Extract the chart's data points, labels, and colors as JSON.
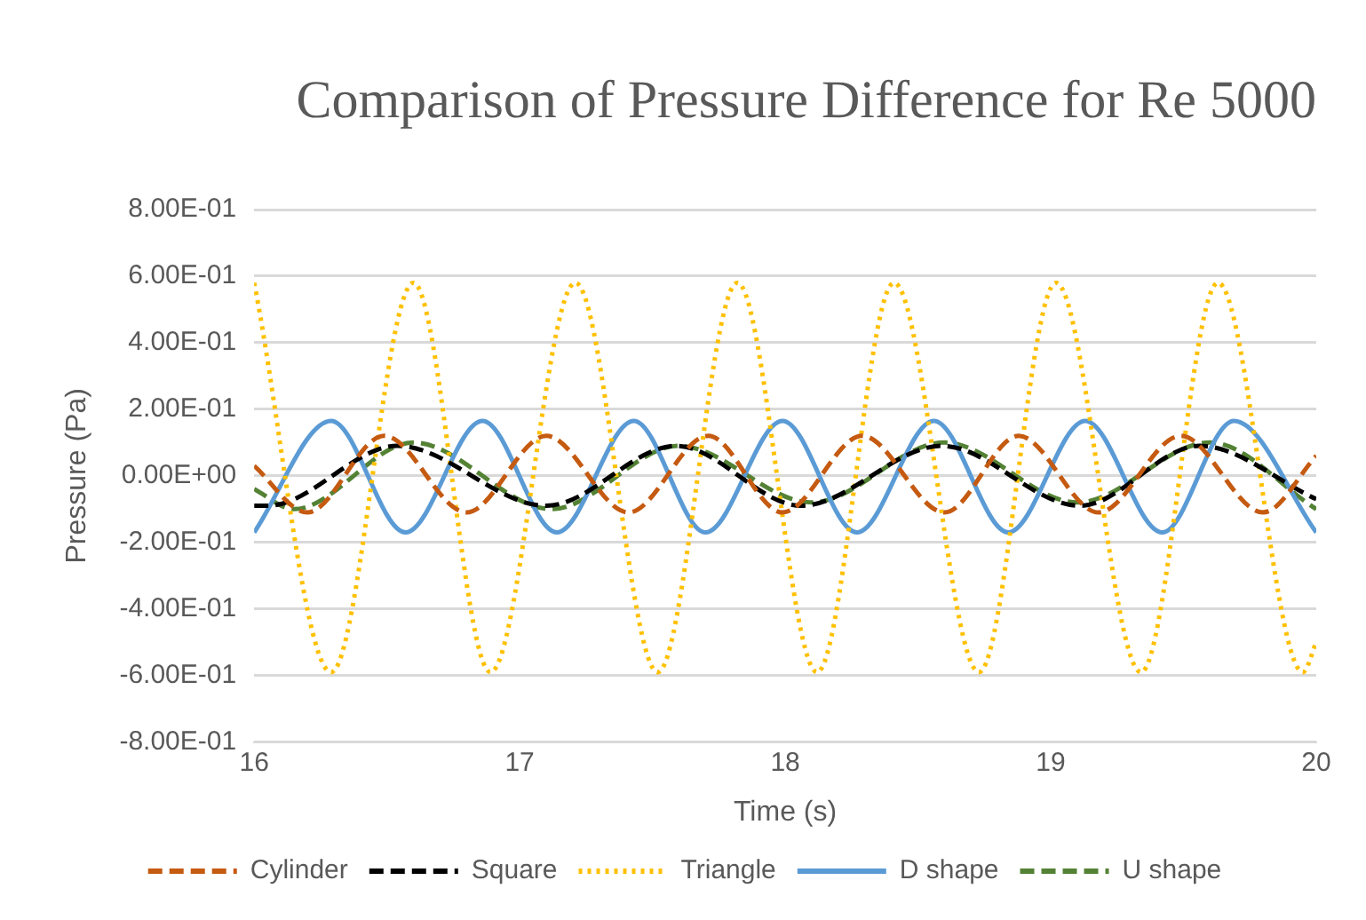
{
  "chart_data": {
    "type": "line",
    "title": "Comparison of Pressure Difference for Re 5000",
    "xlabel": "Time (s)",
    "ylabel": "Pressure (Pa)",
    "xlim": [
      16,
      20
    ],
    "xticks": [
      16,
      17,
      18,
      19,
      20
    ],
    "ylim": [
      -0.8,
      0.8
    ],
    "yticks": [
      {
        "value": -0.8,
        "label": "-8.00E-01"
      },
      {
        "value": -0.6,
        "label": "-6.00E-01"
      },
      {
        "value": -0.4,
        "label": "-4.00E-01"
      },
      {
        "value": -0.2,
        "label": "-2.00E-01"
      },
      {
        "value": 0,
        "label": "0.00E+00"
      },
      {
        "value": 0.2,
        "label": "2.00E-01"
      },
      {
        "value": 0.4,
        "label": "4.00E-01"
      },
      {
        "value": 0.6,
        "label": "6.00E-01"
      },
      {
        "value": 0.8,
        "label": "8.00E-01"
      }
    ],
    "grid": "y",
    "legend": "bottom",
    "marker": "none",
    "series": [
      {
        "name": "Cylinder",
        "color": "#c55a11",
        "line_style": "dashed",
        "x": [
          16.0,
          16.2,
          16.49,
          16.8,
          17.1,
          17.41,
          17.71,
          17.99,
          18.29,
          18.6,
          18.88,
          19.18,
          19.49,
          19.8,
          20.0
        ],
        "values": [
          0.03,
          -0.11,
          0.12,
          -0.11,
          0.12,
          -0.11,
          0.12,
          -0.11,
          0.12,
          -0.11,
          0.12,
          -0.11,
          0.12,
          -0.11,
          0.06
        ]
      },
      {
        "name": "Square",
        "color": "#000000",
        "line_style": "dashed",
        "x": [
          16.0,
          16.05,
          16.54,
          17.1,
          17.59,
          18.06,
          18.59,
          19.11,
          19.56,
          20.0
        ],
        "values": [
          -0.09,
          -0.09,
          0.09,
          -0.09,
          0.09,
          -0.09,
          0.09,
          -0.09,
          0.09,
          -0.07
        ]
      },
      {
        "name": "Triangle",
        "color": "#ffc000",
        "line_style": "dotted",
        "x": [
          16.0,
          16.29,
          16.6,
          16.89,
          17.21,
          17.52,
          17.82,
          18.12,
          18.41,
          18.73,
          19.02,
          19.34,
          19.63,
          19.95,
          20.0
        ],
        "values": [
          0.58,
          -0.59,
          0.58,
          -0.59,
          0.58,
          -0.59,
          0.58,
          -0.59,
          0.58,
          -0.59,
          0.58,
          -0.59,
          0.58,
          -0.59,
          -0.5
        ]
      },
      {
        "name": "D shape",
        "color": "#5b9bd5",
        "line_style": "solid",
        "x": [
          16.0,
          16.29,
          16.57,
          16.86,
          17.14,
          17.43,
          17.7,
          17.99,
          18.27,
          18.56,
          18.84,
          19.13,
          19.42,
          19.69,
          20.0
        ],
        "values": [
          -0.17,
          0.165,
          -0.17,
          0.165,
          -0.17,
          0.165,
          -0.17,
          0.165,
          -0.17,
          0.165,
          -0.17,
          0.165,
          -0.17,
          0.165,
          -0.17
        ]
      },
      {
        "name": "U shape",
        "color": "#548235",
        "line_style": "dashed",
        "x": [
          16.0,
          16.15,
          16.6,
          17.12,
          17.6,
          18.1,
          18.6,
          19.1,
          19.6,
          20.0
        ],
        "values": [
          -0.04,
          -0.1,
          0.1,
          -0.1,
          0.09,
          -0.08,
          0.1,
          -0.08,
          0.1,
          -0.1
        ]
      }
    ]
  }
}
